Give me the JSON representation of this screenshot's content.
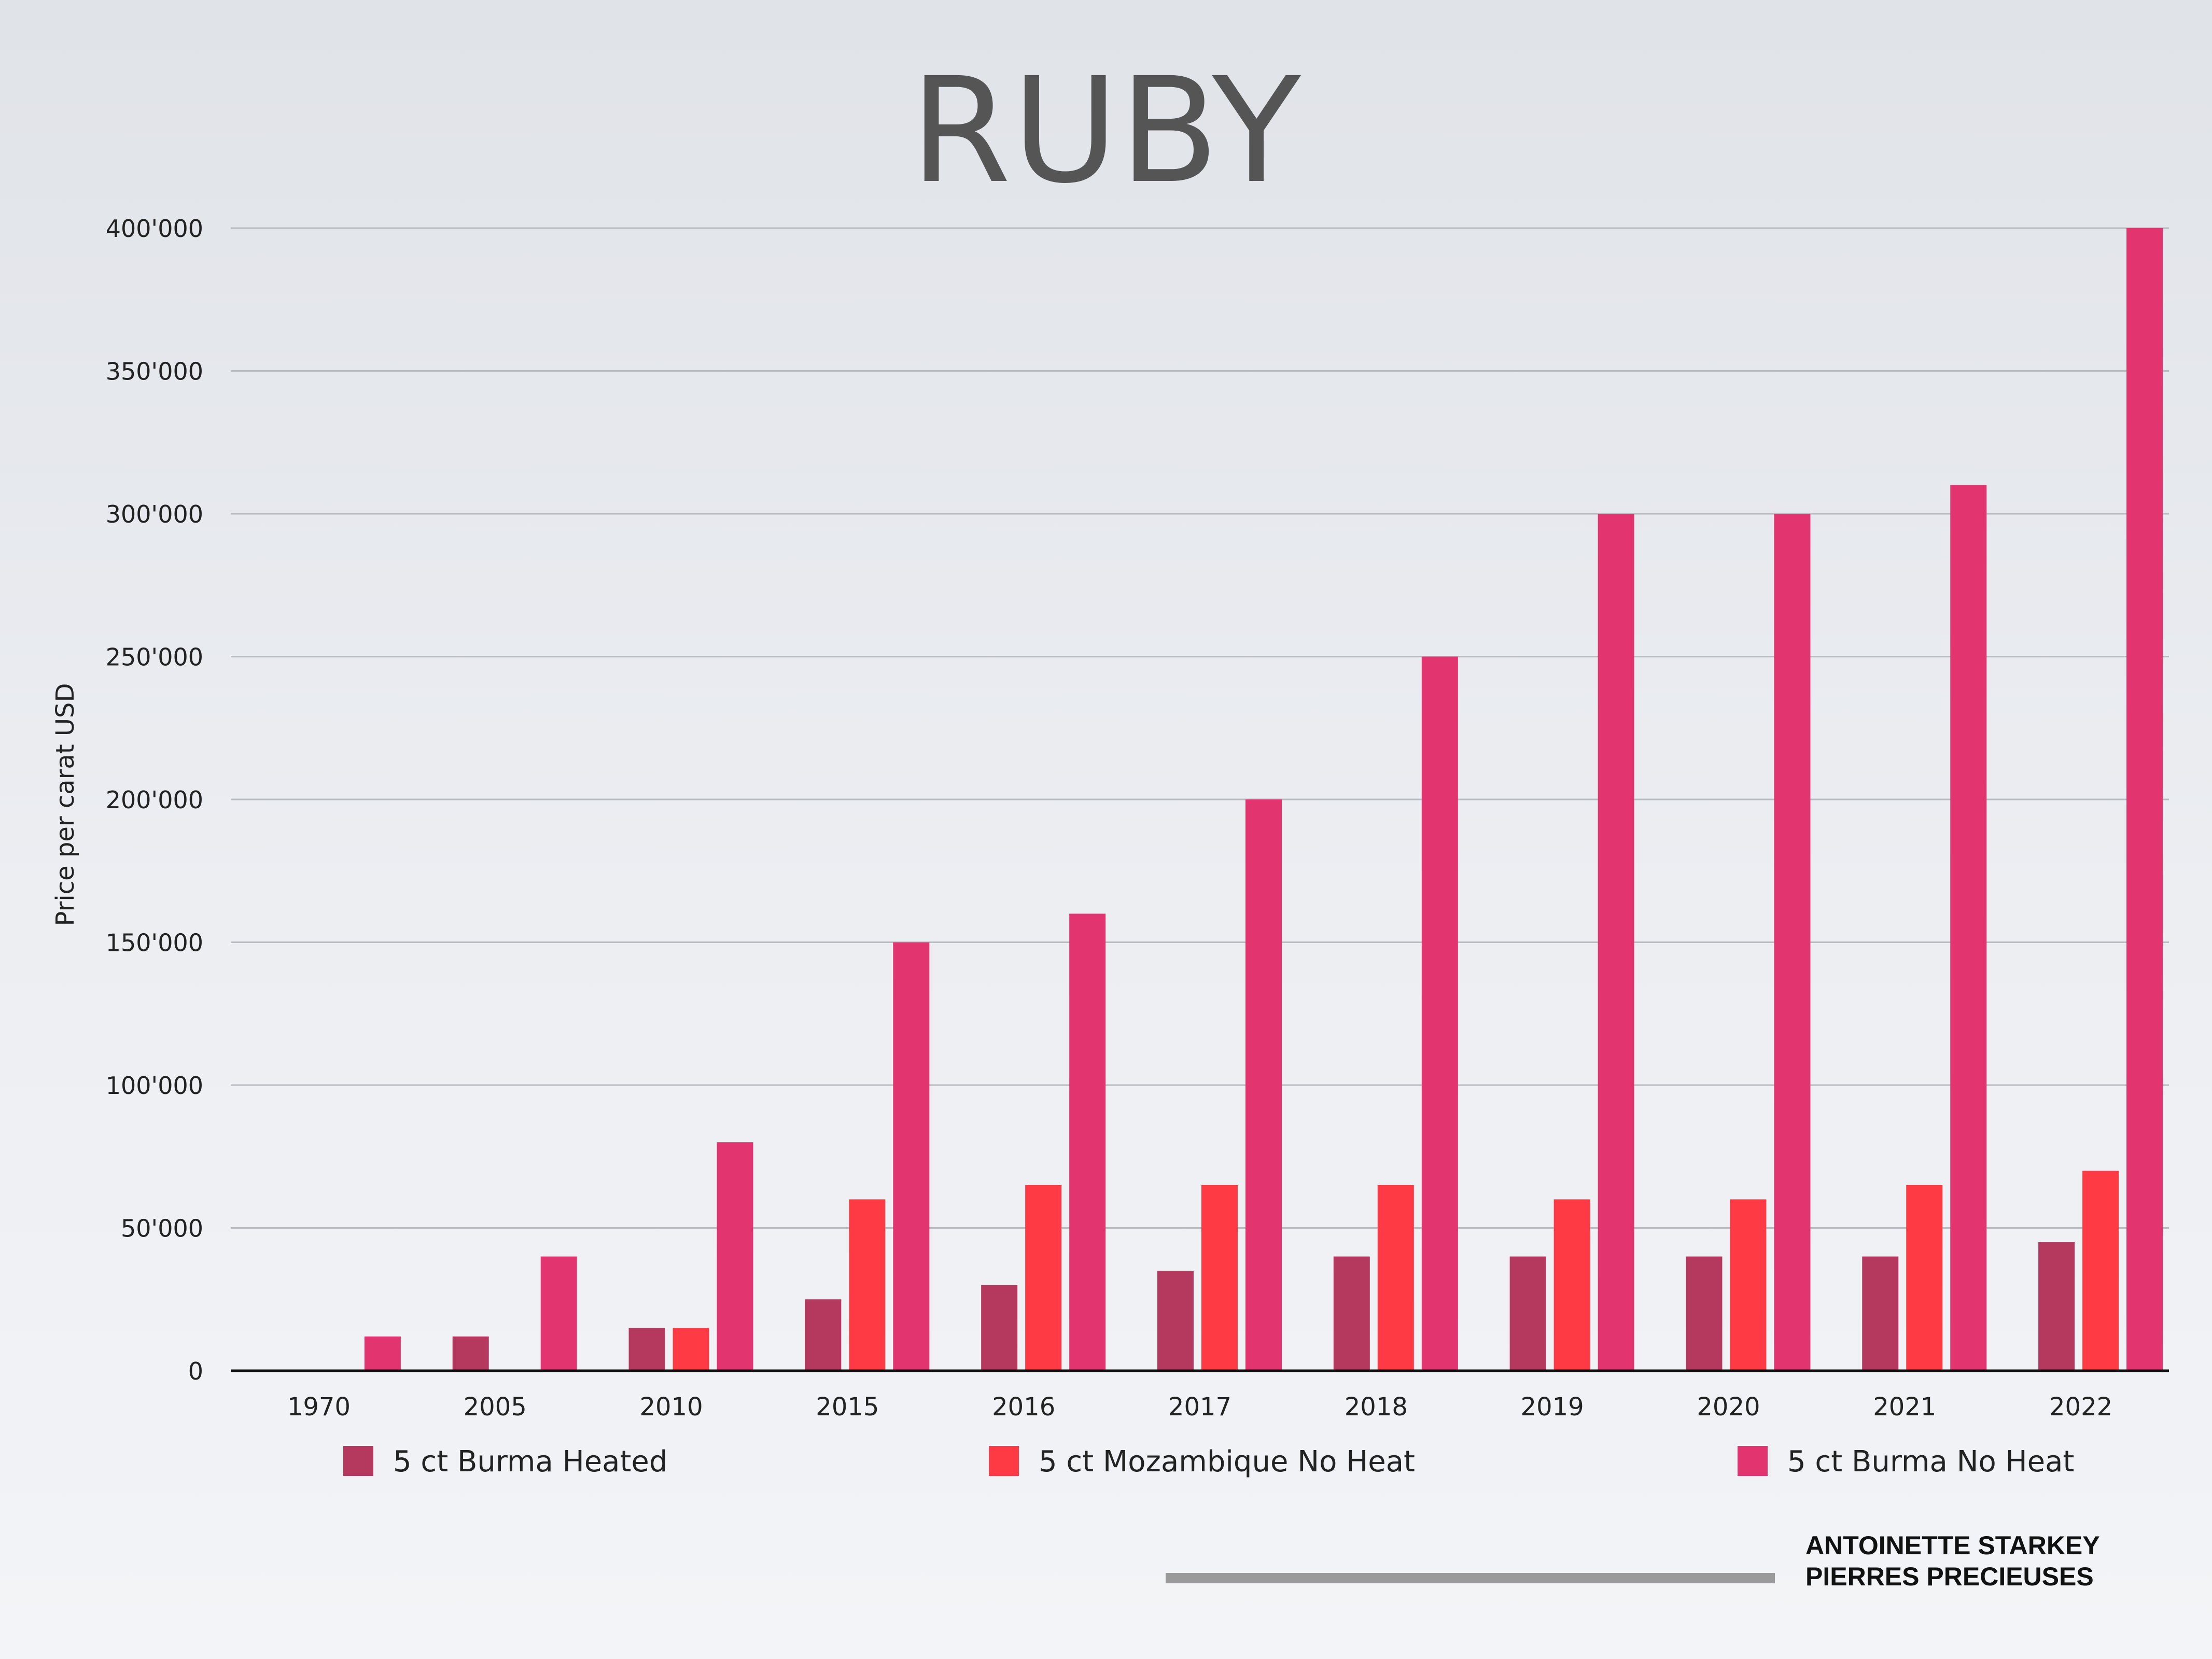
{
  "title": "RUBY",
  "chart_data": {
    "type": "bar",
    "title": "RUBY",
    "xlabel": "",
    "ylabel": "Price per carat USD",
    "ylim": [
      0,
      400000
    ],
    "yticks": [
      0,
      50000,
      100000,
      150000,
      200000,
      250000,
      300000,
      350000,
      400000
    ],
    "ytick_labels": [
      "0",
      "50'000",
      "100'000",
      "150'000",
      "200'000",
      "250'000",
      "300'000",
      "350'000",
      "400'000"
    ],
    "grid": true,
    "legend_position": "bottom",
    "categories": [
      "1970",
      "2005",
      "2010",
      "2015",
      "2016",
      "2017",
      "2018",
      "2019",
      "2020",
      "2021",
      "2022"
    ],
    "series": [
      {
        "name": "5 ct Burma Heated",
        "color": "#b5395f",
        "values": [
          0,
          12000,
          15000,
          25000,
          30000,
          35000,
          40000,
          40000,
          40000,
          40000,
          45000
        ]
      },
      {
        "name": "5 ct Mozambique No Heat",
        "color": "#fe3a45",
        "values": [
          0,
          0,
          15000,
          60000,
          65000,
          65000,
          65000,
          60000,
          60000,
          65000,
          70000
        ]
      },
      {
        "name": "5 ct Burma No Heat",
        "color": "#e2346f",
        "values": [
          12000,
          40000,
          80000,
          150000,
          160000,
          200000,
          250000,
          300000,
          300000,
          310000,
          400000
        ]
      }
    ]
  },
  "branding": {
    "line1": "ANTOINETTE STARKEY",
    "line2": "PIERRES PRECIEUSES",
    "bar_color": "#9a9a9a"
  }
}
